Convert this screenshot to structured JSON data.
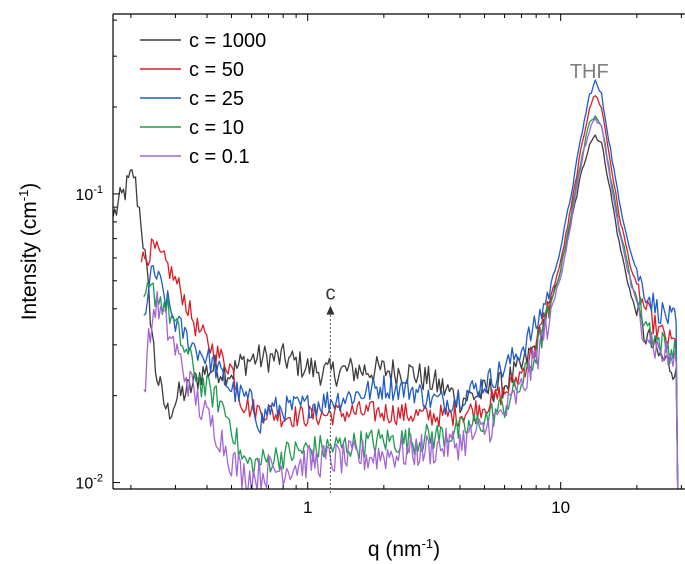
{
  "chart_data": {
    "type": "line",
    "title": "",
    "xlabel": "q (nm",
    "xlabel_sup": "-1",
    "xlabel_close": ")",
    "ylabel": "Intensity (cm",
    "ylabel_sup": "-1",
    "ylabel_close": ")",
    "x_scale": "log",
    "y_scale": "log",
    "xlim": [
      0.17,
      31
    ],
    "ylim": [
      0.0095,
      0.42
    ],
    "x_ticks": [
      {
        "value": 1,
        "label": "1"
      },
      {
        "value": 10,
        "label": "10"
      }
    ],
    "y_ticks": [
      {
        "value": 0.01,
        "base": "10",
        "exp": "-2"
      },
      {
        "value": 0.1,
        "base": "10",
        "exp": "-1"
      }
    ],
    "grid": false,
    "legend_position": "top-left",
    "annotations": {
      "peak_label": "THF",
      "arrow_label": "c",
      "arrow_x": 1.23,
      "arrow_y_from": 0.0092,
      "arrow_y_to": 0.041
    },
    "series": [
      {
        "name": "c = 1000",
        "color": "#3c3c3c",
        "noise": 0.05,
        "points": [
          [
            0.17,
            0.083
          ],
          [
            0.19,
            0.103
          ],
          [
            0.205,
            0.118
          ],
          [
            0.22,
            0.08
          ],
          [
            0.235,
            0.045
          ],
          [
            0.25,
            0.025
          ],
          [
            0.265,
            0.02
          ],
          [
            0.28,
            0.0175
          ],
          [
            0.31,
            0.02
          ],
          [
            0.34,
            0.021
          ],
          [
            0.38,
            0.024
          ],
          [
            0.43,
            0.025
          ],
          [
            0.5,
            0.024
          ],
          [
            0.55,
            0.026
          ],
          [
            0.62,
            0.027
          ],
          [
            0.7,
            0.027
          ],
          [
            0.8,
            0.027
          ],
          [
            0.9,
            0.026
          ],
          [
            1.0,
            0.025
          ],
          [
            1.2,
            0.024
          ],
          [
            1.5,
            0.0245
          ],
          [
            2.0,
            0.0245
          ],
          [
            2.6,
            0.024
          ],
          [
            3.2,
            0.022
          ],
          [
            4.0,
            0.0195
          ],
          [
            5.0,
            0.0205
          ],
          [
            6.0,
            0.022
          ],
          [
            7.0,
            0.025
          ],
          [
            8.0,
            0.03
          ],
          [
            9.0,
            0.04
          ],
          [
            10.0,
            0.055
          ],
          [
            11.0,
            0.08
          ],
          [
            12.0,
            0.115
          ],
          [
            13.0,
            0.15
          ],
          [
            13.7,
            0.16
          ],
          [
            14.5,
            0.15
          ],
          [
            15.5,
            0.11
          ],
          [
            17.0,
            0.068
          ],
          [
            19.0,
            0.044
          ],
          [
            21.0,
            0.034
          ],
          [
            24.0,
            0.028
          ],
          [
            27.0,
            0.0255
          ],
          [
            28.6,
            0.025
          ],
          [
            29.0,
            0.0095
          ]
        ]
      },
      {
        "name": "c = 50",
        "color": "#d91e28",
        "noise": 0.04,
        "points": [
          [
            0.22,
            0.058
          ],
          [
            0.245,
            0.065
          ],
          [
            0.28,
            0.056
          ],
          [
            0.32,
            0.045
          ],
          [
            0.36,
            0.035
          ],
          [
            0.42,
            0.029
          ],
          [
            0.5,
            0.025
          ],
          [
            0.55,
            0.019
          ],
          [
            0.6,
            0.018
          ],
          [
            0.7,
            0.0175
          ],
          [
            0.8,
            0.017
          ],
          [
            1.0,
            0.017
          ],
          [
            1.5,
            0.0175
          ],
          [
            2.0,
            0.0175
          ],
          [
            2.6,
            0.0172
          ],
          [
            3.2,
            0.017
          ],
          [
            4.0,
            0.0172
          ],
          [
            5.0,
            0.0185
          ],
          [
            6.0,
            0.0205
          ],
          [
            7.0,
            0.024
          ],
          [
            8.0,
            0.03
          ],
          [
            9.0,
            0.042
          ],
          [
            10.0,
            0.058
          ],
          [
            11.0,
            0.09
          ],
          [
            12.0,
            0.14
          ],
          [
            13.0,
            0.2
          ],
          [
            13.7,
            0.22
          ],
          [
            14.5,
            0.2
          ],
          [
            15.5,
            0.14
          ],
          [
            17.0,
            0.085
          ],
          [
            19.0,
            0.055
          ],
          [
            21.0,
            0.042
          ],
          [
            24.0,
            0.034
          ],
          [
            27.0,
            0.031
          ],
          [
            28.6,
            0.03
          ],
          [
            29.0,
            0.0095
          ]
        ]
      },
      {
        "name": "c = 25",
        "color": "#1f5bc4",
        "noise": 0.045,
        "points": [
          [
            0.225,
            0.038
          ],
          [
            0.245,
            0.055
          ],
          [
            0.27,
            0.045
          ],
          [
            0.3,
            0.036
          ],
          [
            0.35,
            0.03
          ],
          [
            0.42,
            0.026
          ],
          [
            0.5,
            0.021
          ],
          [
            0.6,
            0.019
          ],
          [
            0.65,
            0.016
          ],
          [
            0.7,
            0.018
          ],
          [
            0.8,
            0.018
          ],
          [
            1.0,
            0.0185
          ],
          [
            1.5,
            0.02
          ],
          [
            2.0,
            0.0215
          ],
          [
            2.6,
            0.021
          ],
          [
            3.0,
            0.0195
          ],
          [
            3.5,
            0.019
          ],
          [
            4.0,
            0.02
          ],
          [
            5.0,
            0.022
          ],
          [
            6.0,
            0.025
          ],
          [
            7.0,
            0.029
          ],
          [
            8.0,
            0.035
          ],
          [
            9.0,
            0.046
          ],
          [
            10.0,
            0.065
          ],
          [
            11.0,
            0.1
          ],
          [
            12.0,
            0.155
          ],
          [
            13.0,
            0.22
          ],
          [
            13.7,
            0.245
          ],
          [
            14.5,
            0.22
          ],
          [
            15.5,
            0.155
          ],
          [
            17.0,
            0.095
          ],
          [
            19.0,
            0.062
          ],
          [
            21.0,
            0.048
          ],
          [
            24.0,
            0.04
          ],
          [
            27.0,
            0.037
          ],
          [
            28.6,
            0.036
          ],
          [
            29.0,
            0.0095
          ]
        ]
      },
      {
        "name": "c = 10",
        "color": "#1f9a4e",
        "noise": 0.05,
        "points": [
          [
            0.225,
            0.044
          ],
          [
            0.245,
            0.046
          ],
          [
            0.28,
            0.04
          ],
          [
            0.32,
            0.03
          ],
          [
            0.38,
            0.022
          ],
          [
            0.45,
            0.019
          ],
          [
            0.5,
            0.016
          ],
          [
            0.55,
            0.012
          ],
          [
            0.6,
            0.0115
          ],
          [
            0.7,
            0.012
          ],
          [
            0.8,
            0.0125
          ],
          [
            1.0,
            0.013
          ],
          [
            1.5,
            0.0135
          ],
          [
            2.0,
            0.014
          ],
          [
            2.6,
            0.014
          ],
          [
            3.2,
            0.0145
          ],
          [
            4.0,
            0.015
          ],
          [
            5.0,
            0.0165
          ],
          [
            6.0,
            0.0185
          ],
          [
            7.0,
            0.022
          ],
          [
            8.0,
            0.028
          ],
          [
            9.0,
            0.039
          ],
          [
            10.0,
            0.055
          ],
          [
            11.0,
            0.085
          ],
          [
            12.0,
            0.13
          ],
          [
            13.0,
            0.175
          ],
          [
            13.7,
            0.19
          ],
          [
            14.5,
            0.175
          ],
          [
            15.5,
            0.125
          ],
          [
            17.0,
            0.078
          ],
          [
            19.0,
            0.05
          ],
          [
            21.0,
            0.038
          ],
          [
            24.0,
            0.031
          ],
          [
            27.0,
            0.029
          ],
          [
            28.6,
            0.028
          ],
          [
            29.0,
            0.0095
          ]
        ]
      },
      {
        "name": "c = 0.1",
        "color": "#a266d4",
        "noise": 0.06,
        "points": [
          [
            0.225,
            0.021
          ],
          [
            0.235,
            0.03
          ],
          [
            0.25,
            0.042
          ],
          [
            0.28,
            0.034
          ],
          [
            0.32,
            0.025
          ],
          [
            0.38,
            0.018
          ],
          [
            0.45,
            0.0145
          ],
          [
            0.5,
            0.012
          ],
          [
            0.55,
            0.0108
          ],
          [
            0.6,
            0.0105
          ],
          [
            0.7,
            0.011
          ],
          [
            0.8,
            0.0112
          ],
          [
            1.0,
            0.0118
          ],
          [
            1.5,
            0.0122
          ],
          [
            2.0,
            0.0125
          ],
          [
            2.6,
            0.0128
          ],
          [
            3.2,
            0.0132
          ],
          [
            4.0,
            0.0138
          ],
          [
            5.0,
            0.0152
          ],
          [
            6.0,
            0.0175
          ],
          [
            7.0,
            0.021
          ],
          [
            8.0,
            0.027
          ],
          [
            9.0,
            0.037
          ],
          [
            10.0,
            0.052
          ],
          [
            11.0,
            0.08
          ],
          [
            12.0,
            0.125
          ],
          [
            13.0,
            0.168
          ],
          [
            13.7,
            0.182
          ],
          [
            14.5,
            0.168
          ],
          [
            15.5,
            0.12
          ],
          [
            17.0,
            0.075
          ],
          [
            19.0,
            0.048
          ],
          [
            21.0,
            0.036
          ],
          [
            24.0,
            0.029
          ],
          [
            27.0,
            0.027
          ],
          [
            28.6,
            0.026
          ],
          [
            29.0,
            0.0095
          ]
        ]
      }
    ]
  }
}
